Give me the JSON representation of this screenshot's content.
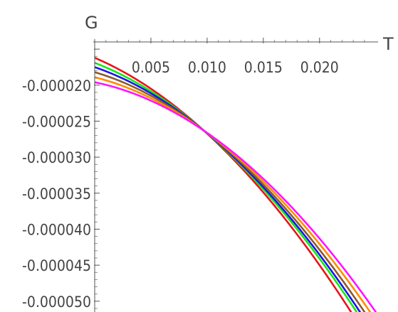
{
  "chart_data": {
    "type": "line",
    "title": "",
    "xlabel": "T",
    "ylabel": "G",
    "xlim": [
      0.0,
      0.0247
    ],
    "ylim": [
      -5.15e-05,
      -1.4e-05
    ],
    "x_ticks": [
      0.005,
      0.01,
      0.015,
      0.02
    ],
    "x_tick_labels": [
      "0.005",
      "0.010",
      "0.015",
      "0.020"
    ],
    "y_ticks": [
      -2e-05,
      -2.5e-05,
      -3e-05,
      -3.5e-05,
      -4e-05,
      -4.5e-05,
      -5e-05
    ],
    "y_tick_labels": [
      "-0.000020",
      "-0.000025",
      "-0.000030",
      "-0.000035",
      "-0.000040",
      "-0.000045",
      "-0.000050"
    ],
    "grid": false,
    "legend": "none",
    "crossing_point": {
      "x": 0.0097,
      "y": -2.63e-05
    },
    "series": [
      {
        "color": "#e8141b",
        "x": [
          0,
          0.0097,
          0.0228
        ],
        "y": [
          -1.62e-05,
          -2.63e-05,
          -5.15e-05
        ]
      },
      {
        "color": "#19e619",
        "x": [
          0,
          0.0097,
          0.0233
        ],
        "y": [
          -1.69e-05,
          -2.63e-05,
          -5.15e-05
        ]
      },
      {
        "color": "#1717e6",
        "x": [
          0,
          0.0097,
          0.0236
        ],
        "y": [
          -1.75e-05,
          -2.63e-05,
          -5.15e-05
        ]
      },
      {
        "color": "#8c5a2d",
        "x": [
          0,
          0.0097,
          0.024
        ],
        "y": [
          -1.82e-05,
          -2.63e-05,
          -5.15e-05
        ]
      },
      {
        "color": "#ff8c00",
        "x": [
          0,
          0.0097,
          0.0245
        ],
        "y": [
          -1.89e-05,
          -2.63e-05,
          -5.15e-05
        ]
      },
      {
        "color": "#ff14ff",
        "x": [
          0,
          0.0097,
          0.025
        ],
        "y": [
          -1.96e-05,
          -2.63e-05,
          -5.15e-05
        ]
      }
    ]
  }
}
